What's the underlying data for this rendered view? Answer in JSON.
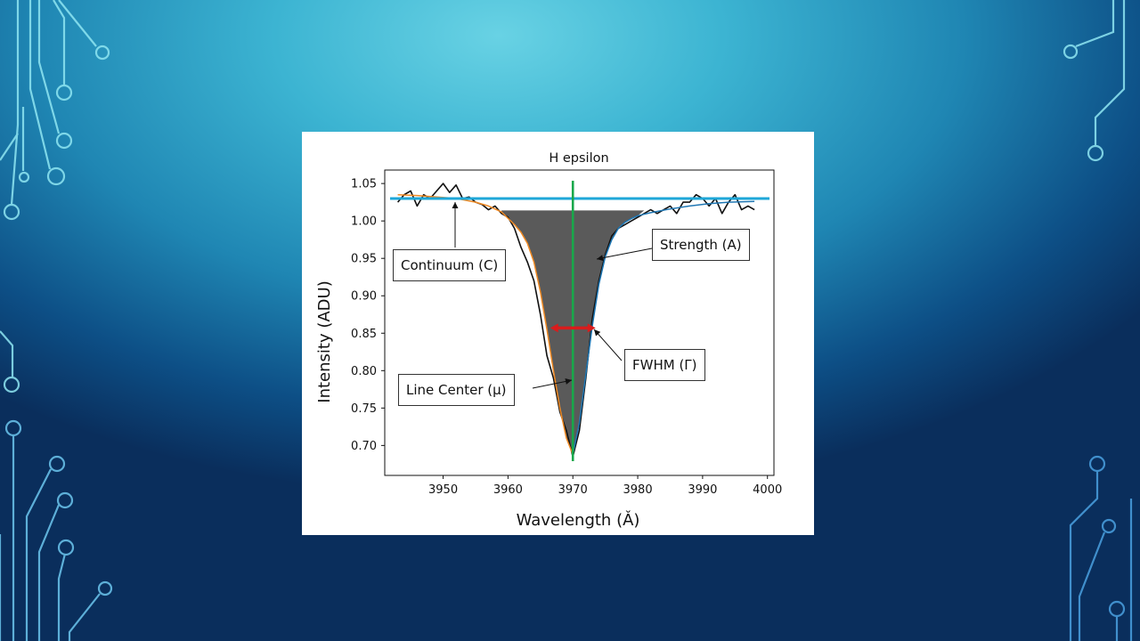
{
  "chart_data": {
    "type": "line",
    "title": "H epsilon",
    "xlabel": "Wavelength (Ǎ)",
    "ylabel": "Intensity (ADU)",
    "xlim": [
      3941,
      4001
    ],
    "ylim": [
      0.66,
      1.068
    ],
    "xticks": [
      3950,
      3960,
      3970,
      3980,
      3990,
      4000
    ],
    "yticks": [
      0.7,
      0.75,
      0.8,
      0.85,
      0.9,
      0.95,
      1.0,
      1.05
    ],
    "grid": false,
    "series": [
      {
        "color": "#111111",
        "x": [
          3943,
          3944,
          3945,
          3946,
          3947,
          3948,
          3949,
          3950,
          3951,
          3952,
          3953,
          3954,
          3955,
          3956,
          3957,
          3958,
          3959,
          3960,
          3961,
          3962,
          3963,
          3964,
          3965,
          3966,
          3967,
          3968,
          3969,
          3970,
          3971,
          3972,
          3973,
          3974,
          3975,
          3976,
          3977,
          3978,
          3979,
          3980,
          3981,
          3982,
          3983,
          3984,
          3985,
          3986,
          3987,
          3988,
          3989,
          3990,
          3991,
          3992,
          3993,
          3994,
          3995,
          3996,
          3997,
          3998
        ],
        "y": [
          1.025,
          1.035,
          1.04,
          1.02,
          1.035,
          1.03,
          1.04,
          1.05,
          1.038,
          1.048,
          1.03,
          1.032,
          1.025,
          1.022,
          1.015,
          1.02,
          1.01,
          1.005,
          0.99,
          0.965,
          0.945,
          0.92,
          0.875,
          0.82,
          0.79,
          0.745,
          0.72,
          0.685,
          0.72,
          0.79,
          0.87,
          0.92,
          0.955,
          0.98,
          0.99,
          0.995,
          1.0,
          1.005,
          1.01,
          1.015,
          1.01,
          1.015,
          1.02,
          1.01,
          1.025,
          1.025,
          1.035,
          1.03,
          1.02,
          1.03,
          1.01,
          1.025,
          1.035,
          1.015,
          1.02,
          1.015
        ]
      },
      {
        "color": "#f08a24",
        "x": [
          3943,
          3946,
          3949,
          3952,
          3955,
          3957,
          3959,
          3961,
          3962,
          3963,
          3964,
          3965,
          3966,
          3967,
          3968,
          3969,
          3970
        ],
        "y": [
          1.035,
          1.034,
          1.032,
          1.03,
          1.025,
          1.02,
          1.012,
          0.995,
          0.985,
          0.97,
          0.945,
          0.905,
          0.855,
          0.8,
          0.75,
          0.71,
          0.688
        ]
      },
      {
        "color": "#1f77b4",
        "x": [
          3970,
          3971,
          3972,
          3973,
          3974,
          3975,
          3976,
          3977,
          3978,
          3979,
          3980,
          3982,
          3985,
          3988,
          3991,
          3994,
          3998
        ],
        "y": [
          0.688,
          0.73,
          0.795,
          0.86,
          0.915,
          0.952,
          0.975,
          0.99,
          0.998,
          1.003,
          1.007,
          1.011,
          1.016,
          1.02,
          1.023,
          1.025,
          1.026
        ]
      }
    ],
    "annotations": {
      "continuum": "Continuum (C)",
      "strength": "Strength (A)",
      "fwhm": "FWHM (Γ)",
      "line_center": "Line Center (μ)"
    },
    "continuum_level": 1.03,
    "line_center_x": 3970,
    "fwhm_range": [
      3966.5,
      3973.5
    ],
    "fwhm_y": 0.857,
    "colors": {
      "continuum_line": "#1ea7d8",
      "center_line": "#18a84a",
      "fwhm_arrow": "#d91c1c",
      "fill": "#5a5a5a"
    }
  }
}
